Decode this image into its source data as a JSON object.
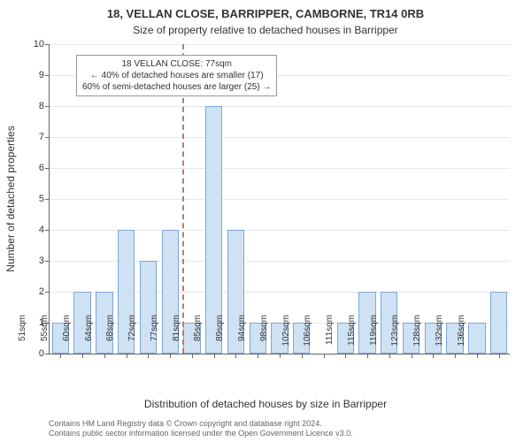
{
  "title": "18, VELLAN CLOSE, BARRIPPER, CAMBORNE, TR14 0RB",
  "subtitle": "Size of property relative to detached houses in Barripper",
  "ylabel": "Number of detached properties",
  "xlabel": "Distribution of detached houses by size in Barripper",
  "chart": {
    "type": "bar",
    "ylim": [
      0,
      10
    ],
    "ytick_step": 1,
    "background_color": "#ffffff",
    "grid_color": "#e8e8e8",
    "axis_color": "#666666",
    "bar_fill": "#cfe2f3",
    "bar_border": "#7da7d9",
    "bar_width": 0.78,
    "categories": [
      "51sqm",
      "55sqm",
      "60sqm",
      "64sqm",
      "68sqm",
      "72sqm",
      "77sqm",
      "81sqm",
      "85sqm",
      "89sqm",
      "94sqm",
      "98sqm",
      "102sqm",
      "106sqm",
      "111sqm",
      "115sqm",
      "119sqm",
      "123sqm",
      "128sqm",
      "132sqm",
      "136sqm"
    ],
    "values": [
      1,
      2,
      2,
      4,
      3,
      4,
      1,
      8,
      4,
      1,
      1,
      1,
      0,
      1,
      2,
      2,
      1,
      1,
      1,
      1,
      2
    ],
    "label_fontsize": 10,
    "tick_fontsize": 11,
    "title_fontsize": 13
  },
  "marker": {
    "position_sqm": "77sqm",
    "category_index": 6,
    "color": "#b97a7a",
    "dash": "dashed"
  },
  "annotation": {
    "lines": [
      "18 VELLAN CLOSE: 77sqm",
      "← 40% of detached houses are smaller (17)",
      "60% of semi-detached houses are larger (25) →"
    ],
    "border_color": "#999999",
    "background_color": "#ffffff",
    "fontsize": 10
  },
  "footer": {
    "line1": "Contains HM Land Registry data © Crown copyright and database right 2024.",
    "line2": "Contains public sector information licensed under the Open Government Licence v3.0.",
    "fontsize": 9,
    "color": "#666666"
  }
}
